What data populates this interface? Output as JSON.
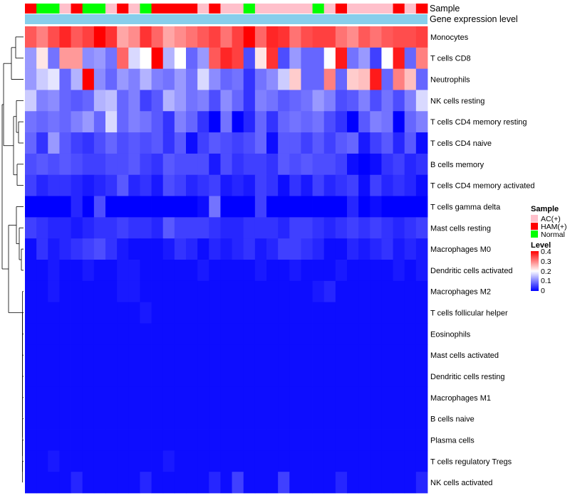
{
  "chart_data": {
    "type": "heatmap",
    "annotation_labels": [
      "Sample",
      "Gene expression level"
    ],
    "rows": [
      "Monocytes",
      "T cells CD8",
      "Neutrophils",
      "NK cells resting",
      "T cells CD4 memory resting",
      "T cells CD4 naive",
      "B cells memory",
      "T cells CD4 memory activated",
      "T cells gamma delta",
      "Mast cells resting",
      "Macrophages M0",
      "Dendritic cells activated",
      "Macrophages M2",
      "T cells follicular helper",
      "Eosinophils",
      "Mast cells activated",
      "Dendritic cells resting",
      "Macrophages M1",
      "B cells naive",
      "Plasma cells",
      "T cells regulatory  Tregs",
      "NK cells activated"
    ],
    "sample_groups": [
      "HAM(+)",
      "Normal",
      "Normal",
      "AC(+)",
      "HAM(+)",
      "Normal",
      "Normal",
      "AC(+)",
      "HAM(+)",
      "AC(+)",
      "Normal",
      "HAM(+)",
      "HAM(+)",
      "HAM(+)",
      "HAM(+)",
      "AC(+)",
      "HAM(+)",
      "AC(+)",
      "AC(+)",
      "Normal",
      "AC(+)",
      "AC(+)",
      "AC(+)",
      "AC(+)",
      "AC(+)",
      "Normal",
      "AC(+)",
      "HAM(+)",
      "AC(+)",
      "AC(+)",
      "AC(+)",
      "AC(+)",
      "HAM(+)",
      "AC(+)",
      "HAM(+)"
    ],
    "values": [
      [
        0.33,
        0.3,
        0.34,
        0.37,
        0.33,
        0.35,
        0.4,
        0.36,
        0.27,
        0.29,
        0.36,
        0.32,
        0.27,
        0.29,
        0.31,
        0.33,
        0.35,
        0.31,
        0.35,
        0.4,
        0.32,
        0.37,
        0.36,
        0.31,
        0.34,
        0.35,
        0.35,
        0.31,
        0.29,
        0.33,
        0.31,
        0.33,
        0.34,
        0.34,
        0.35
      ],
      [
        0.12,
        0.22,
        0.09,
        0.28,
        0.28,
        0.11,
        0.12,
        0.09,
        0.32,
        0.17,
        0.2,
        0.4,
        0.14,
        0.2,
        0.08,
        0.12,
        0.33,
        0.37,
        0.35,
        0.06,
        0.22,
        0.36,
        0.06,
        0.12,
        0.08,
        0.08,
        0.2,
        0.38,
        0.09,
        0.12,
        0.05,
        0.2,
        0.38,
        0.08,
        0.3
      ],
      [
        0.12,
        0.16,
        0.18,
        0.08,
        0.14,
        0.4,
        0.11,
        0.08,
        0.12,
        0.1,
        0.14,
        0.1,
        0.09,
        0.12,
        0.09,
        0.17,
        0.11,
        0.08,
        0.09,
        0.04,
        0.09,
        0.11,
        0.16,
        0.24,
        0.08,
        0.08,
        0.3,
        0.08,
        0.24,
        0.25,
        0.38,
        0.08,
        0.3,
        0.25,
        0.08
      ],
      [
        0.16,
        0.1,
        0.11,
        0.08,
        0.07,
        0.08,
        0.14,
        0.15,
        0.08,
        0.1,
        0.05,
        0.07,
        0.14,
        0.12,
        0.09,
        0.1,
        0.06,
        0.11,
        0.08,
        0.04,
        0.1,
        0.09,
        0.07,
        0.08,
        0.09,
        0.12,
        0.1,
        0.06,
        0.07,
        0.1,
        0.06,
        0.09,
        0.06,
        0.1,
        0.17
      ],
      [
        0.09,
        0.08,
        0.09,
        0.08,
        0.1,
        0.12,
        0.08,
        0.17,
        0.08,
        0.1,
        0.09,
        0.07,
        0.04,
        0.1,
        0.08,
        0.04,
        0.0,
        0.09,
        0.0,
        0.03,
        0.08,
        0.04,
        0.08,
        0.09,
        0.08,
        0.09,
        0.06,
        0.04,
        0.0,
        0.07,
        0.1,
        0.09,
        0.0,
        0.08,
        0.1
      ],
      [
        0.08,
        0.04,
        0.12,
        0.07,
        0.05,
        0.04,
        0.06,
        0.08,
        0.06,
        0.07,
        0.06,
        0.07,
        0.04,
        0.07,
        0.01,
        0.05,
        0.07,
        0.06,
        0.05,
        0.06,
        0.08,
        0.01,
        0.07,
        0.07,
        0.05,
        0.07,
        0.05,
        0.07,
        0.08,
        0.02,
        0.05,
        0.07,
        0.03,
        0.07,
        0.01
      ],
      [
        0.06,
        0.07,
        0.06,
        0.07,
        0.06,
        0.05,
        0.05,
        0.06,
        0.06,
        0.07,
        0.05,
        0.04,
        0.07,
        0.06,
        0.06,
        0.06,
        0.02,
        0.06,
        0.04,
        0.05,
        0.05,
        0.04,
        0.07,
        0.06,
        0.07,
        0.06,
        0.06,
        0.05,
        0.01,
        0.0,
        0.01,
        0.04,
        0.05,
        0.03,
        0.04
      ],
      [
        0.05,
        0.03,
        0.04,
        0.04,
        0.03,
        0.02,
        0.03,
        0.04,
        0.07,
        0.03,
        0.04,
        0.02,
        0.06,
        0.05,
        0.03,
        0.04,
        0.05,
        0.02,
        0.03,
        0.02,
        0.05,
        0.04,
        0.01,
        0.04,
        0.02,
        0.05,
        0.03,
        0.04,
        0.05,
        0.01,
        0.05,
        0.03,
        0.04,
        0.03,
        0.01
      ],
      [
        0.0,
        0.0,
        0.0,
        0.0,
        0.03,
        0.0,
        0.06,
        0.0,
        0.0,
        0.0,
        0.0,
        0.0,
        0.0,
        0.0,
        0.0,
        0.01,
        0.09,
        0.0,
        0.0,
        0.0,
        0.05,
        0.0,
        0.0,
        0.0,
        0.0,
        0.0,
        0.0,
        0.0,
        0.03,
        0.0,
        0.01,
        0.0,
        0.0,
        0.0,
        0.0
      ],
      [
        0.05,
        0.04,
        0.03,
        0.03,
        0.02,
        0.03,
        0.04,
        0.04,
        0.05,
        0.04,
        0.04,
        0.03,
        0.07,
        0.05,
        0.05,
        0.05,
        0.04,
        0.03,
        0.03,
        0.04,
        0.04,
        0.04,
        0.03,
        0.05,
        0.05,
        0.04,
        0.03,
        0.04,
        0.05,
        0.04,
        0.05,
        0.04,
        0.03,
        0.04,
        0.05
      ],
      [
        0.01,
        0.04,
        0.02,
        0.03,
        0.04,
        0.05,
        0.06,
        0.04,
        0.02,
        0.01,
        0.01,
        0.01,
        0.02,
        0.04,
        0.03,
        0.01,
        0.03,
        0.02,
        0.03,
        0.04,
        0.02,
        0.03,
        0.05,
        0.05,
        0.04,
        0.03,
        0.01,
        0.01,
        0.03,
        0.02,
        0.03,
        0.04,
        0.02,
        0.03,
        0.02
      ],
      [
        0.01,
        0.01,
        0.02,
        0.01,
        0.01,
        0.02,
        0.01,
        0.01,
        0.02,
        0.02,
        0.01,
        0.01,
        0.01,
        0.01,
        0.01,
        0.02,
        0.01,
        0.01,
        0.01,
        0.01,
        0.02,
        0.01,
        0.01,
        0.02,
        0.01,
        0.01,
        0.01,
        0.02,
        0.01,
        0.01,
        0.01,
        0.01,
        0.02,
        0.01,
        0.02
      ],
      [
        0.01,
        0.01,
        0.02,
        0.01,
        0.01,
        0.01,
        0.01,
        0.01,
        0.02,
        0.02,
        0.01,
        0.01,
        0.01,
        0.01,
        0.01,
        0.01,
        0.01,
        0.01,
        0.01,
        0.01,
        0.01,
        0.01,
        0.01,
        0.01,
        0.01,
        0.02,
        0.03,
        0.01,
        0.01,
        0.01,
        0.01,
        0.01,
        0.01,
        0.01,
        0.01
      ],
      [
        0.01,
        0.01,
        0.01,
        0.01,
        0.01,
        0.01,
        0.01,
        0.01,
        0.01,
        0.01,
        0.02,
        0.01,
        0.01,
        0.01,
        0.01,
        0.01,
        0.01,
        0.01,
        0.01,
        0.01,
        0.01,
        0.01,
        0.01,
        0.01,
        0.01,
        0.01,
        0.01,
        0.01,
        0.01,
        0.01,
        0.01,
        0.01,
        0.01,
        0.01,
        0.01
      ],
      [
        0.01,
        0.01,
        0.01,
        0.01,
        0.01,
        0.01,
        0.01,
        0.01,
        0.01,
        0.01,
        0.01,
        0.01,
        0.01,
        0.01,
        0.01,
        0.01,
        0.01,
        0.01,
        0.01,
        0.01,
        0.01,
        0.01,
        0.01,
        0.01,
        0.01,
        0.01,
        0.01,
        0.01,
        0.01,
        0.01,
        0.01,
        0.01,
        0.01,
        0.01,
        0.01
      ],
      [
        0.01,
        0.01,
        0.01,
        0.01,
        0.01,
        0.01,
        0.01,
        0.01,
        0.01,
        0.01,
        0.01,
        0.01,
        0.01,
        0.01,
        0.01,
        0.01,
        0.01,
        0.01,
        0.01,
        0.01,
        0.01,
        0.01,
        0.01,
        0.01,
        0.01,
        0.01,
        0.01,
        0.01,
        0.01,
        0.01,
        0.01,
        0.01,
        0.01,
        0.01,
        0.01
      ],
      [
        0.01,
        0.01,
        0.01,
        0.01,
        0.01,
        0.01,
        0.01,
        0.01,
        0.01,
        0.01,
        0.01,
        0.01,
        0.01,
        0.01,
        0.01,
        0.01,
        0.01,
        0.01,
        0.01,
        0.01,
        0.01,
        0.01,
        0.01,
        0.01,
        0.01,
        0.01,
        0.01,
        0.01,
        0.01,
        0.01,
        0.01,
        0.01,
        0.01,
        0.01,
        0.01
      ],
      [
        0.01,
        0.01,
        0.01,
        0.01,
        0.01,
        0.01,
        0.01,
        0.01,
        0.01,
        0.01,
        0.01,
        0.01,
        0.01,
        0.01,
        0.01,
        0.01,
        0.01,
        0.01,
        0.01,
        0.01,
        0.01,
        0.01,
        0.01,
        0.01,
        0.01,
        0.01,
        0.01,
        0.01,
        0.01,
        0.01,
        0.01,
        0.01,
        0.01,
        0.01,
        0.01
      ],
      [
        0.01,
        0.01,
        0.01,
        0.01,
        0.01,
        0.01,
        0.01,
        0.01,
        0.01,
        0.01,
        0.01,
        0.01,
        0.01,
        0.01,
        0.01,
        0.01,
        0.01,
        0.01,
        0.01,
        0.01,
        0.01,
        0.01,
        0.01,
        0.01,
        0.01,
        0.01,
        0.01,
        0.01,
        0.01,
        0.01,
        0.01,
        0.01,
        0.01,
        0.01,
        0.01
      ],
      [
        0.01,
        0.01,
        0.01,
        0.01,
        0.01,
        0.01,
        0.01,
        0.01,
        0.01,
        0.01,
        0.01,
        0.01,
        0.01,
        0.01,
        0.01,
        0.01,
        0.01,
        0.01,
        0.01,
        0.01,
        0.01,
        0.01,
        0.01,
        0.01,
        0.01,
        0.01,
        0.01,
        0.01,
        0.01,
        0.01,
        0.01,
        0.01,
        0.01,
        0.01,
        0.01
      ],
      [
        0.01,
        0.01,
        0.02,
        0.01,
        0.01,
        0.01,
        0.01,
        0.01,
        0.01,
        0.01,
        0.01,
        0.01,
        0.02,
        0.01,
        0.01,
        0.01,
        0.01,
        0.01,
        0.01,
        0.01,
        0.01,
        0.01,
        0.01,
        0.01,
        0.01,
        0.01,
        0.01,
        0.01,
        0.01,
        0.01,
        0.01,
        0.01,
        0.01,
        0.01,
        0.01
      ],
      [
        0.01,
        0.01,
        0.01,
        0.01,
        0.03,
        0.01,
        0.01,
        0.01,
        0.01,
        0.01,
        0.03,
        0.01,
        0.01,
        0.01,
        0.01,
        0.01,
        0.03,
        0.01,
        0.05,
        0.01,
        0.01,
        0.01,
        0.05,
        0.01,
        0.01,
        0.01,
        0.01,
        0.03,
        0.01,
        0.01,
        0.01,
        0.01,
        0.01,
        0.01,
        0.03
      ]
    ],
    "legend_sample": {
      "title": "Sample",
      "entries": [
        {
          "label": "AC(+)",
          "color": "#ffc0cb"
        },
        {
          "label": "HAM(+)",
          "color": "#ff0000"
        },
        {
          "label": "Normal",
          "color": "#00ff00"
        }
      ]
    },
    "legend_level": {
      "title": "Level",
      "ticks": [
        "0.4",
        "0.3",
        "0.2",
        "0.1",
        "0"
      ],
      "range": [
        0,
        0.4
      ]
    },
    "colors": {
      "low": "#0000ff",
      "mid": "#ffffff",
      "high": "#ff0000",
      "gene_bar": "#87ceeb"
    }
  }
}
